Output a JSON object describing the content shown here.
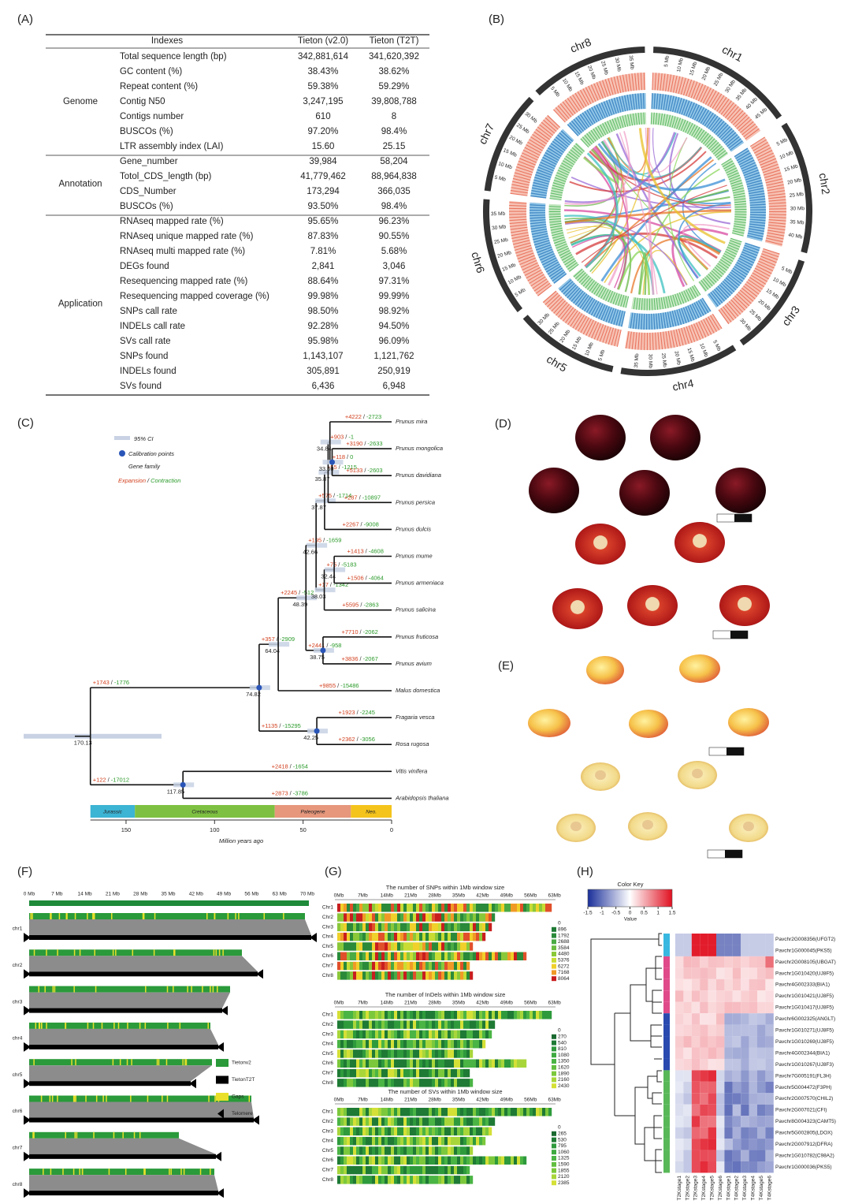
{
  "panel_labels": [
    "(A)",
    "(B)",
    "(C)",
    "(D)",
    "(E)",
    "(F)",
    "(G)",
    "(H)"
  ],
  "table": {
    "columns": [
      "Indexes",
      "Tieton (v2.0)",
      "Tieton (T2T)"
    ],
    "groups": [
      {
        "name": "Genome",
        "rows": [
          [
            "Total sequence length (bp)",
            "342,881,614",
            "341,620,392"
          ],
          [
            "GC content (%)",
            "38.43%",
            "38.62%"
          ],
          [
            "Repeat content (%)",
            "59.38%",
            "59.29%"
          ],
          [
            "Contig N50",
            "3,247,195",
            "39,808,788"
          ],
          [
            "Contigs number",
            "610",
            "8"
          ],
          [
            "BUSCOs (%)",
            "97.20%",
            "98.4%"
          ],
          [
            "LTR assembly index (LAI)",
            "15.60",
            "25.15"
          ]
        ]
      },
      {
        "name": "Annotation",
        "rows": [
          [
            "Gene_number",
            "39,984",
            "58,204"
          ],
          [
            "Totol_CDS_length (bp)",
            "41,779,462",
            "88,964,838"
          ],
          [
            "CDS_Number",
            "173,294",
            "366,035"
          ],
          [
            "BUSCOs (%)",
            "93.50%",
            "98.4%"
          ]
        ]
      },
      {
        "name": "Application",
        "rows": [
          [
            "RNAseq mapped rate (%)",
            "95.65%",
            "96.23%"
          ],
          [
            "RNAseq unique mapped rate (%)",
            "87.83%",
            "90.55%"
          ],
          [
            "RNAseq multi mapped rate (%)",
            "7.81%",
            "5.68%"
          ],
          [
            "DEGs found",
            "2,841",
            "3,046"
          ],
          [
            "Resequencing mapped rate (%)",
            "88.64%",
            "97.31%"
          ],
          [
            "Resequencing mapped coverage (%)",
            "99.98%",
            "99.99%"
          ],
          [
            "SNPs call rate",
            "98.50%",
            "98.92%"
          ],
          [
            "INDELs call rate",
            "92.28%",
            "94.50%"
          ],
          [
            "SVs call rate",
            "95.98%",
            "96.09%"
          ],
          [
            "SNPs found",
            "1,143,107",
            "1,121,762"
          ],
          [
            "INDELs found",
            "305,891",
            "250,919"
          ],
          [
            "SVs found",
            "6,436",
            "6,948"
          ]
        ]
      }
    ]
  },
  "circos": {
    "chromosomes": [
      {
        "name": "chr1",
        "ticks": [
          "5 Mb",
          "10 Mb",
          "15 Mb",
          "20 Mb",
          "25 Mb",
          "30 Mb",
          "35 Mb",
          "40 Mb",
          "45 Mb"
        ]
      },
      {
        "name": "chr2",
        "ticks": [
          "5 Mb",
          "10 Mb",
          "15 Mb",
          "20 Mb",
          "25 Mb",
          "30 Mb",
          "35 Mb",
          "40 Mb"
        ]
      },
      {
        "name": "chr3",
        "ticks": [
          "5 Mb",
          "10 Mb",
          "15 Mb",
          "20 Mb",
          "25 Mb",
          "30 Mb"
        ]
      },
      {
        "name": "chr4",
        "ticks": [
          "5 Mb",
          "10 Mb",
          "15 Mb",
          "20 Mb",
          "25 Mb",
          "30 Mb",
          "35 Mb"
        ]
      },
      {
        "name": "chr5",
        "ticks": [
          "5 Mb",
          "10 Mb",
          "15 Mb",
          "20 Mb",
          "25 Mb",
          "30 Mb"
        ]
      },
      {
        "name": "chr6",
        "ticks": [
          "5 Mb",
          "10 Mb",
          "15 Mb",
          "20 Mb",
          "25 Mb",
          "30 Mb",
          "35 Mb"
        ]
      },
      {
        "name": "chr7",
        "ticks": [
          "5 Mb",
          "10 Mb",
          "15 Mb",
          "20 Mb",
          "25 Mb",
          "30 Mb"
        ]
      },
      {
        "name": "chr8",
        "ticks": [
          "5 Mb",
          "10 Mb",
          "15 Mb",
          "20 Mb",
          "25 Mb",
          "30 Mb",
          "35 Mb"
        ]
      }
    ]
  },
  "tree": {
    "legend": {
      "ci": "95% CI",
      "calibration": "Calibration points",
      "gene_family": "Gene family",
      "expansion": "Expansion",
      "separator": "/",
      "contraction": "Contraction"
    },
    "species": [
      {
        "name": "Prunus mira",
        "expansion": "+4222",
        "contraction": "-2723"
      },
      {
        "name": "Prunus mongolica",
        "expansion": "+3190",
        "contraction": "-2633"
      },
      {
        "name": "Prunus davidiana",
        "expansion": "+5133",
        "contraction": "-2603"
      },
      {
        "name": "Prunus persica",
        "expansion": "+287",
        "contraction": "-10897"
      },
      {
        "name": "Prunus dulcis",
        "expansion": "+2267",
        "contraction": "-9008"
      },
      {
        "name": "Prunus mume",
        "expansion": "+1413",
        "contraction": "-4608"
      },
      {
        "name": "Prunus armeniaca",
        "expansion": "+1506",
        "contraction": "-4064"
      },
      {
        "name": "Prunus salicina",
        "expansion": "+5595",
        "contraction": "-2863"
      },
      {
        "name": "Prunus fruticosa",
        "expansion": "+7710",
        "contraction": "-2062"
      },
      {
        "name": "Prunus avium",
        "expansion": "+3836",
        "contraction": "-2067"
      },
      {
        "name": "Malus domestica",
        "expansion": "+9855",
        "contraction": "-15486"
      },
      {
        "name": "Fragaria vesca",
        "expansion": "+1923",
        "contraction": "-2245"
      },
      {
        "name": "Rosa rugosa",
        "expansion": "+2362",
        "contraction": "-3056"
      },
      {
        "name": "Vitis vinifera",
        "expansion": "+2418",
        "contraction": "-1654"
      },
      {
        "name": "Arabidopsis thaliana",
        "expansion": "+2873",
        "contraction": "-3786"
      }
    ],
    "nodes": [
      {
        "age": 170.13
      },
      {
        "age": 117.85,
        "expansion": "+122",
        "contraction": "-17012"
      },
      {
        "age": 74.82,
        "expansion": "+1743",
        "contraction": "-1776"
      },
      {
        "age": 42.25,
        "expansion": "+1135",
        "contraction": "-15295"
      },
      {
        "age": 64.04,
        "expansion": "+357",
        "contraction": "-2909"
      },
      {
        "age": 48.39,
        "expansion": "+2245",
        "contraction": "-512"
      },
      {
        "age": 38.75,
        "expansion": "+2441",
        "contraction": "-958"
      },
      {
        "age": 42.66,
        "expansion": "+195",
        "contraction": "-1659"
      },
      {
        "age": 38.03,
        "expansion": "+17",
        "contraction": "-1342"
      },
      {
        "age": 32.44,
        "expansion": "+75",
        "contraction": "-5183"
      },
      {
        "age": 37.87,
        "expansion": "+575",
        "contraction": "-1714"
      },
      {
        "age": 35.87,
        "expansion": "+55",
        "contraction": "-1215"
      },
      {
        "age": 34.84,
        "expansion": "+903",
        "contraction": "-1"
      },
      {
        "age": 33.6,
        "age_label": "33.60",
        "expansion": "+118",
        "contraction": "0"
      }
    ],
    "periods": [
      "Jurassic",
      "Cretaceous",
      "Paleogene",
      "Neo."
    ],
    "ticks": [
      150,
      100,
      50,
      0
    ],
    "axis_label": "Million years ago"
  },
  "synteny": {
    "ticks": [
      "0 Mb",
      "7 Mb",
      "14 Mb",
      "21 Mb",
      "28 Mb",
      "35 Mb",
      "42 Mb",
      "49 Mb",
      "56 Mb",
      "63 Mb",
      "70 Mb"
    ],
    "rows": [
      "chr1",
      "chr2",
      "chr3",
      "chr4",
      "chr5",
      "chr6",
      "chr7",
      "chr8"
    ],
    "legend": [
      "Tietonv2",
      "TietonT2T",
      "Gaps",
      "Telomere"
    ]
  },
  "density": {
    "ticks": [
      "0Mb",
      "7Mb",
      "14Mb",
      "21Mb",
      "28Mb",
      "35Mb",
      "42Mb",
      "49Mb",
      "56Mb",
      "63Mb"
    ],
    "rows": [
      "Chr1",
      "Chr2",
      "Chr3",
      "Chr4",
      "Chr5",
      "Chr6",
      "Chr7",
      "Chr8"
    ],
    "panels": [
      {
        "title": "The number of SNPs within 1Mb window size",
        "legend": [
          0,
          896,
          1792,
          2688,
          3584,
          4480,
          5376,
          6272,
          7168,
          8064
        ]
      },
      {
        "title": "The number of InDels within 1Mb window size",
        "legend": [
          0,
          270,
          540,
          810,
          1080,
          1350,
          1620,
          1890,
          2160,
          2430
        ]
      },
      {
        "title": "The number of SVs within 1Mb window size",
        "legend": [
          0,
          265,
          530,
          795,
          1060,
          1325,
          1590,
          1855,
          2120,
          2385
        ]
      }
    ]
  },
  "heatmap": {
    "key_title": "Color Key",
    "key_ticks": [
      -1.5,
      -1,
      -0.5,
      0,
      0.5,
      1,
      1.5
    ],
    "key_label": "Value",
    "genes": [
      "Pavchr2G008356(UFGT2)",
      "Pavchr1G000045(PKS5)",
      "Pavchr2G008105(UBGAT)",
      "Pavchr1G010420(UJ8F5)",
      "Pavchr4G002333(BIA1)",
      "Pavchr1G010421(UJ8F5)",
      "Pavchr1G010417(UJ8F5)",
      "Pavchr6G002325(ANGLT)",
      "Pavchr1G010271(UJ8F5)",
      "Pavchr1G010269(UJ8F5)",
      "Pavchr4G002344(BIA1)",
      "Pavchr1G010267(UJ8F3)",
      "Pavchr7G005191(FL3H)",
      "Pavchr5G004472(F3PH)",
      "Pavchr2G007570(CHIL2)",
      "Pavchr2G007021(CFI)",
      "Pavchr8G004323(CAMT5)",
      "Pavchr5G002805(LDOX)",
      "Pavchr2G007912(DFRA)",
      "Pavchr1G010782(C98A2)",
      "Pavchr1G000036(PKS5)"
    ],
    "samples": [
      "T2Kstage1",
      "T2Kstage2",
      "T2Kstage3",
      "T2Kstage4",
      "T2Kstage5",
      "T2Kstage6",
      "T4Kstage1",
      "T4Kstage2",
      "T4Kstage3",
      "T4Kstage4",
      "T4Kstage5",
      "T4Kstage6"
    ]
  }
}
